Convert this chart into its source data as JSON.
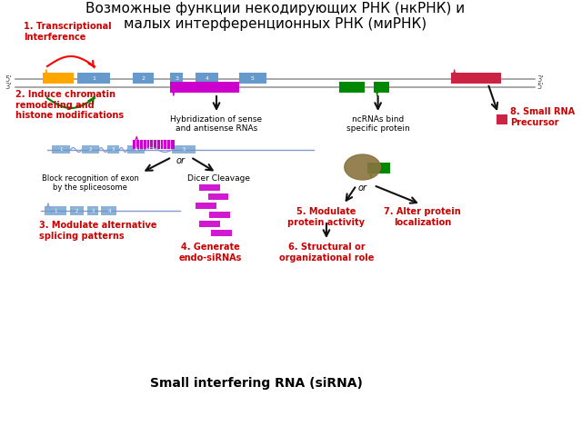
{
  "title_ru": "Возможные функции некодирующих РНК (нкРНК) и\nмалых интерференционных РНК (миРНК)",
  "subtitle_en": "Small interfering RNA (siRNA)",
  "bg_color": "#ffffff",
  "colors": {
    "orange": "#FFA500",
    "blue": "#6699CC",
    "magenta": "#CC00CC",
    "green": "#008800",
    "red": "#CC2244",
    "text_red": "#CC0000",
    "gray_line": "#999999",
    "blue_line": "#8899CC",
    "dark": "#111111"
  },
  "labels": {
    "1": "1. Transcriptional\nInterference",
    "2": "2. Induce chromatin\nremodeling and\nhistone modifications",
    "3": "3. Modulate alternative\nsplicing patterns",
    "4": "4. Generate\nendo-siRNAs",
    "5": "5. Modulate\nprotein activity",
    "6": "6. Structural or\norganizational role",
    "7": "7. Alter protein\nlocalization",
    "8": "8. Small RNA\nPrecursor",
    "hyb": "Hybridization of sense\nand antisense RNAs",
    "ncRNA": "ncRNAs bind\nspecific protein",
    "block": "Block recognition of exon\nby the spliceosome",
    "dicer": "Dicer Cleavage"
  }
}
